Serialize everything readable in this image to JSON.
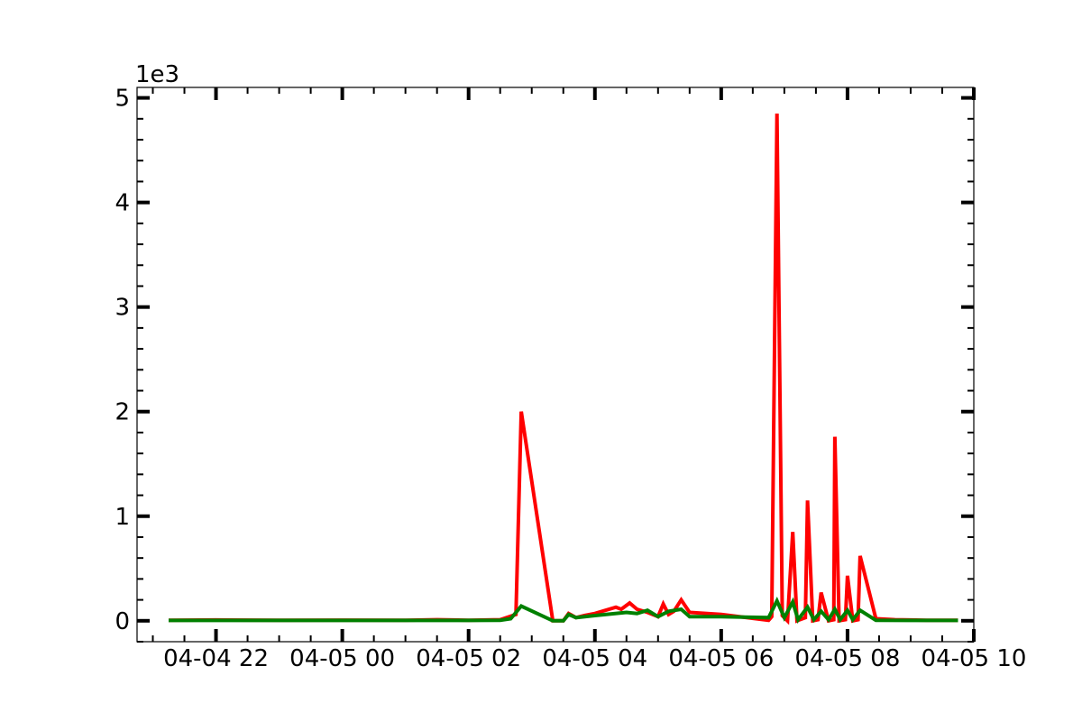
{
  "chart_data": {
    "type": "line",
    "title": "",
    "xlabel": "",
    "ylabel": "",
    "y_offset_text": "1e3",
    "x_axis": {
      "type": "datetime",
      "range": [
        "2025-04-04T20:45",
        "2025-04-05T10:00"
      ],
      "major_ticks": [
        {
          "t": "2025-04-04T22:00",
          "label": "04-04 22"
        },
        {
          "t": "2025-04-05T00:00",
          "label": "04-05 00"
        },
        {
          "t": "2025-04-05T02:00",
          "label": "04-05 02"
        },
        {
          "t": "2025-04-05T04:00",
          "label": "04-05 04"
        },
        {
          "t": "2025-04-05T06:00",
          "label": "04-05 06"
        },
        {
          "t": "2025-04-05T08:00",
          "label": "04-05 08"
        },
        {
          "t": "2025-04-05T10:00",
          "label": "04-05 10"
        }
      ],
      "minor_tick_hours": 0.5
    },
    "y_axis": {
      "range": [
        -200,
        5100
      ],
      "major_ticks": [
        0,
        1000,
        2000,
        3000,
        4000,
        5000
      ],
      "tick_labels": [
        "0",
        "1",
        "2",
        "3",
        "4",
        "5"
      ],
      "minor_step": 200
    },
    "grid": false,
    "legend": "none",
    "series": [
      {
        "color": "#ff0000",
        "points": [
          [
            "2025-04-04T21:15",
            5
          ],
          [
            "2025-04-04T22:00",
            8
          ],
          [
            "2025-04-04T23:00",
            5
          ],
          [
            "2025-04-05T00:00",
            6
          ],
          [
            "2025-04-05T01:00",
            5
          ],
          [
            "2025-04-05T01:30",
            10
          ],
          [
            "2025-04-05T02:00",
            5
          ],
          [
            "2025-04-05T02:30",
            10
          ],
          [
            "2025-04-05T02:45",
            60
          ],
          [
            "2025-04-05T02:50",
            2000
          ],
          [
            "2025-04-05T03:20",
            0
          ],
          [
            "2025-04-05T03:30",
            0
          ],
          [
            "2025-04-05T03:35",
            70
          ],
          [
            "2025-04-05T03:42",
            30
          ],
          [
            "2025-04-05T03:50",
            50
          ],
          [
            "2025-04-05T04:00",
            70
          ],
          [
            "2025-04-05T04:20",
            130
          ],
          [
            "2025-04-05T04:25",
            110
          ],
          [
            "2025-04-05T04:33",
            170
          ],
          [
            "2025-04-05T04:40",
            110
          ],
          [
            "2025-04-05T04:50",
            80
          ],
          [
            "2025-04-05T05:00",
            40
          ],
          [
            "2025-04-05T05:05",
            160
          ],
          [
            "2025-04-05T05:10",
            60
          ],
          [
            "2025-04-05T05:15",
            90
          ],
          [
            "2025-04-05T05:22",
            200
          ],
          [
            "2025-04-05T05:30",
            80
          ],
          [
            "2025-04-05T06:00",
            60
          ],
          [
            "2025-04-05T06:45",
            5
          ],
          [
            "2025-04-05T06:48",
            40
          ],
          [
            "2025-04-05T06:53",
            4850
          ],
          [
            "2025-04-05T06:58",
            50
          ],
          [
            "2025-04-05T07:03",
            0
          ],
          [
            "2025-04-05T07:08",
            850
          ],
          [
            "2025-04-05T07:12",
            0
          ],
          [
            "2025-04-05T07:20",
            30
          ],
          [
            "2025-04-05T07:22",
            1150
          ],
          [
            "2025-04-05T07:27",
            0
          ],
          [
            "2025-04-05T07:32",
            10
          ],
          [
            "2025-04-05T07:35",
            270
          ],
          [
            "2025-04-05T07:42",
            0
          ],
          [
            "2025-04-05T07:47",
            10
          ],
          [
            "2025-04-05T07:48",
            1760
          ],
          [
            "2025-04-05T07:52",
            0
          ],
          [
            "2025-04-05T07:58",
            10
          ],
          [
            "2025-04-05T08:00",
            430
          ],
          [
            "2025-04-05T08:05",
            0
          ],
          [
            "2025-04-05T08:10",
            10
          ],
          [
            "2025-04-05T08:12",
            620
          ],
          [
            "2025-04-05T08:27",
            20
          ],
          [
            "2025-04-05T08:45",
            10
          ],
          [
            "2025-04-05T09:15",
            5
          ],
          [
            "2025-04-05T09:45",
            5
          ]
        ]
      },
      {
        "color": "#008000",
        "points": [
          [
            "2025-04-04T21:15",
            3
          ],
          [
            "2025-04-04T22:00",
            3
          ],
          [
            "2025-04-04T23:00",
            3
          ],
          [
            "2025-04-05T00:00",
            3
          ],
          [
            "2025-04-05T01:00",
            3
          ],
          [
            "2025-04-05T02:00",
            3
          ],
          [
            "2025-04-05T02:30",
            5
          ],
          [
            "2025-04-05T02:40",
            20
          ],
          [
            "2025-04-05T02:50",
            140
          ],
          [
            "2025-04-05T03:20",
            0
          ],
          [
            "2025-04-05T03:30",
            0
          ],
          [
            "2025-04-05T03:35",
            60
          ],
          [
            "2025-04-05T03:42",
            30
          ],
          [
            "2025-04-05T04:00",
            50
          ],
          [
            "2025-04-05T04:30",
            80
          ],
          [
            "2025-04-05T04:40",
            70
          ],
          [
            "2025-04-05T04:50",
            100
          ],
          [
            "2025-04-05T05:00",
            40
          ],
          [
            "2025-04-05T05:10",
            90
          ],
          [
            "2025-04-05T05:22",
            110
          ],
          [
            "2025-04-05T05:30",
            40
          ],
          [
            "2025-04-05T06:00",
            40
          ],
          [
            "2025-04-05T06:45",
            30
          ],
          [
            "2025-04-05T06:53",
            190
          ],
          [
            "2025-04-05T07:00",
            30
          ],
          [
            "2025-04-05T07:08",
            180
          ],
          [
            "2025-04-05T07:13",
            10
          ],
          [
            "2025-04-05T07:22",
            130
          ],
          [
            "2025-04-05T07:28",
            10
          ],
          [
            "2025-04-05T07:35",
            90
          ],
          [
            "2025-04-05T07:42",
            10
          ],
          [
            "2025-04-05T07:48",
            110
          ],
          [
            "2025-04-05T07:53",
            10
          ],
          [
            "2025-04-05T08:00",
            100
          ],
          [
            "2025-04-05T08:05",
            10
          ],
          [
            "2025-04-05T08:12",
            100
          ],
          [
            "2025-04-05T08:27",
            5
          ],
          [
            "2025-04-05T09:00",
            3
          ],
          [
            "2025-04-05T09:45",
            3
          ]
        ]
      }
    ]
  }
}
